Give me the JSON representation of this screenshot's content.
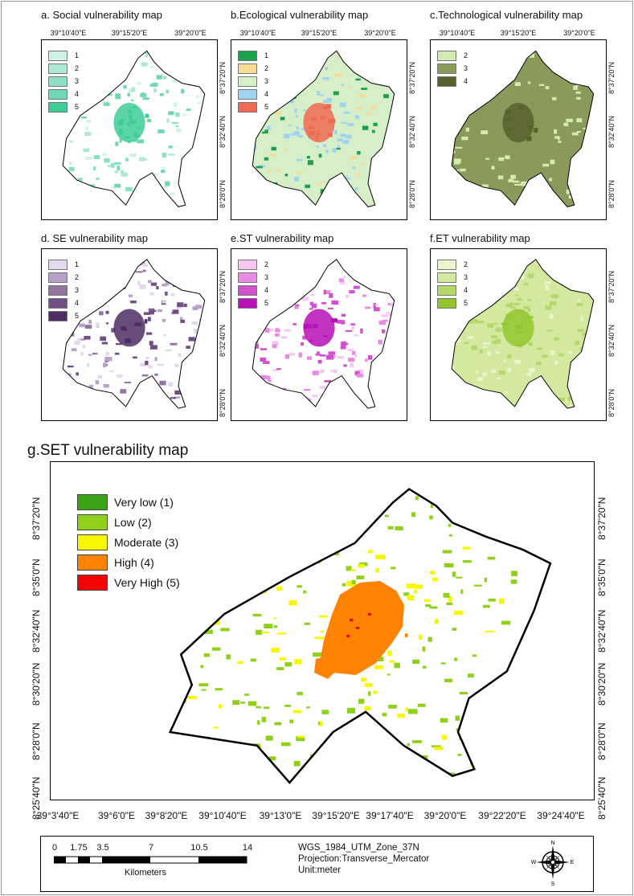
{
  "panels": [
    {
      "title": "a. Social vulnerability map",
      "legend": [
        {
          "label": "1",
          "color": "#cff1e6"
        },
        {
          "label": "2",
          "color": "#aee8d4"
        },
        {
          "label": "3",
          "color": "#8ee0c3"
        },
        {
          "label": "4",
          "color": "#6fd8b2"
        },
        {
          "label": "5",
          "color": "#3ecd97"
        }
      ],
      "top_ticks": [
        "39°10'40\"E",
        "39°15'20\"E",
        "39°20'0\"E"
      ],
      "right_ticks": [
        "8°37'20\"N",
        "8°32'40\"N",
        "8°28'0\"N"
      ]
    },
    {
      "title": "b.Ecological vulnerability map",
      "legend": [
        {
          "label": "1",
          "color": "#1aa34a"
        },
        {
          "label": "2",
          "color": "#f6dc95"
        },
        {
          "label": "3",
          "color": "#d7efc8"
        },
        {
          "label": "4",
          "color": "#9fd3ef"
        },
        {
          "label": "5",
          "color": "#ef6a52"
        }
      ],
      "top_ticks": [
        "39°10'40\"E",
        "39°15'20\"E",
        "39°20'0\"E"
      ],
      "right_ticks": [
        "8°37'20\"N",
        "8°32'40\"N",
        "8°28'0\"N"
      ]
    },
    {
      "title": "c.Technological vulnerability map",
      "legend": [
        {
          "label": "2",
          "color": "#d3ebb2"
        },
        {
          "label": "3",
          "color": "#8a9a5b"
        },
        {
          "label": "4",
          "color": "#56622c"
        }
      ],
      "top_ticks": [
        "39°10'40\"E",
        "39°15'20\"E",
        "39°20'0\"E"
      ],
      "right_ticks": [
        "8°37'20\"N",
        "8°32'40\"N",
        "8°28'0\"N"
      ]
    },
    {
      "title": "d. SE vulnerability map",
      "legend": [
        {
          "label": "1",
          "color": "#e6d8ec"
        },
        {
          "label": "2",
          "color": "#b9a0c8"
        },
        {
          "label": "3",
          "color": "#93759f"
        },
        {
          "label": "4",
          "color": "#6f4f84"
        },
        {
          "label": "5",
          "color": "#4e2d63"
        }
      ],
      "top_ticks": [],
      "right_ticks": [
        "8°37'20\"N",
        "8°32'40\"N",
        "8°28'0\"N"
      ]
    },
    {
      "title": "e.ST vulnerability map",
      "legend": [
        {
          "label": "2",
          "color": "#f7c6f1"
        },
        {
          "label": "3",
          "color": "#e98be2"
        },
        {
          "label": "4",
          "color": "#d252ce"
        },
        {
          "label": "5",
          "color": "#b80fb7"
        }
      ],
      "top_ticks": [],
      "right_ticks": []
    },
    {
      "title": "f.ET vulnerability map",
      "legend": [
        {
          "label": "2",
          "color": "#eaf5cc"
        },
        {
          "label": "3",
          "color": "#d3e9a0"
        },
        {
          "label": "4",
          "color": "#b5d86b"
        },
        {
          "label": "5",
          "color": "#91c52e"
        }
      ],
      "top_ticks": [],
      "right_ticks": [
        "8°37'20\"N",
        "8°32'40\"N",
        "8°28'0\"N"
      ]
    }
  ],
  "main_map": {
    "title": "g.SET vulnerability map",
    "legend": [
      {
        "label": "Very low (1)",
        "color": "#3aa416"
      },
      {
        "label": "Low (2)",
        "color": "#8fd11a"
      },
      {
        "label": "Moderate (3)",
        "color": "#f7f700"
      },
      {
        "label": "High (4)",
        "color": "#ff8300"
      },
      {
        "label": "Very High (5)",
        "color": "#f20505"
      }
    ],
    "bottom_ticks": [
      "39°3'40\"E",
      "39°6'0\"E",
      "39°8'20\"E",
      "39°10'40\"E",
      "39°13'0\"E",
      "39°15'20\"E",
      "39°17'40\"E",
      "39°20'0\"E",
      "39°22'20\"E",
      "39°24'40\"E"
    ],
    "left_ticks": [
      "8°37'20\"N",
      "8°35'0\"N",
      "8°32'40\"N",
      "8°30'20\"N",
      "8°28'0\"N",
      "8°25'40\"N"
    ],
    "right_ticks": [
      "8°37'20\"N",
      "8°35'0\"N",
      "8°32'40\"N",
      "8°30'20\"N",
      "8°28'0\"N",
      "8°25'40\"N"
    ]
  },
  "scale_bar": {
    "numbers": [
      "0",
      "1.75",
      "3.5",
      "7",
      "10.5",
      "14"
    ],
    "unit": "Kilometers"
  },
  "projection": {
    "line1": "WGS_1984_UTM_Zone_37N",
    "line2": "Projection:Transverse_Mercator",
    "line3": "Unit:meter"
  },
  "compass": {
    "n": "N",
    "s": "S",
    "e": "E",
    "w": "W"
  }
}
